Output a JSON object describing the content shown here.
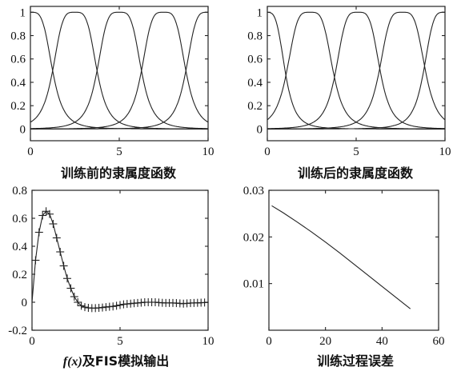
{
  "chart_data": [
    {
      "type": "line",
      "title": "",
      "caption": "训练前的隶属度函数",
      "xlim": [
        0,
        10
      ],
      "ylim": [
        -0.1,
        1.05
      ],
      "x_ticks": [
        0,
        5,
        10
      ],
      "y_ticks": [
        0,
        0.2,
        0.4,
        0.6,
        0.8,
        1
      ],
      "x_tick_labels": [
        "0",
        "5",
        "10"
      ],
      "y_tick_labels": [
        "0",
        "0.2",
        "0.4",
        "0.6",
        "0.8",
        "1"
      ],
      "series": [
        {
          "kind": "gbell",
          "a": 1.25,
          "b": 2,
          "c": 0
        },
        {
          "kind": "gbell",
          "a": 1.25,
          "b": 2,
          "c": 2.5
        },
        {
          "kind": "gbell",
          "a": 1.25,
          "b": 2,
          "c": 5
        },
        {
          "kind": "gbell",
          "a": 1.25,
          "b": 2,
          "c": 7.5
        },
        {
          "kind": "gbell",
          "a": 1.25,
          "b": 2,
          "c": 10
        }
      ],
      "grid": false
    },
    {
      "type": "line",
      "title": "",
      "caption": "训练后的隶属度函数",
      "xlim": [
        0,
        10
      ],
      "ylim": [
        -0.1,
        1.05
      ],
      "x_ticks": [
        0,
        5,
        10
      ],
      "y_ticks": [
        0,
        0.2,
        0.4,
        0.6,
        0.8,
        1
      ],
      "x_tick_labels": [
        "0",
        "5",
        "10"
      ],
      "y_tick_labels": [
        "0",
        "0.2",
        "0.4",
        "0.6",
        "0.8",
        "1"
      ],
      "series": [
        {
          "kind": "gbell",
          "a": 1.1,
          "b": 2,
          "c": -0.1
        },
        {
          "kind": "gbell",
          "a": 1.3,
          "b": 2,
          "c": 2.4
        },
        {
          "kind": "gbell",
          "a": 1.25,
          "b": 2,
          "c": 5.1
        },
        {
          "kind": "gbell",
          "a": 1.3,
          "b": 2,
          "c": 7.6
        },
        {
          "kind": "gbell",
          "a": 1.2,
          "b": 2,
          "c": 10
        }
      ],
      "grid": false
    },
    {
      "type": "line",
      "title": "",
      "caption": "f(x)及FIS模拟输出",
      "caption_italic_part": "f(x)",
      "caption_rest": "及FIS模拟输出",
      "xlim": [
        0,
        10
      ],
      "ylim": [
        -0.2,
        0.8
      ],
      "x_ticks": [
        0,
        5,
        10
      ],
      "y_ticks": [
        -0.2,
        0,
        0.2,
        0.4,
        0.6,
        0.8
      ],
      "x_tick_labels": [
        "0",
        "5",
        "10"
      ],
      "y_tick_labels": [
        "-0.2",
        "0",
        "0.2",
        "0.4",
        "0.6",
        "0.8"
      ],
      "series": [
        {
          "kind": "line",
          "x": [
            0,
            0.2,
            0.4,
            0.6,
            0.8,
            1.0,
            1.2,
            1.4,
            1.6,
            1.8,
            2.0,
            2.2,
            2.4,
            2.6,
            2.8,
            3.0,
            3.2,
            3.4,
            3.6,
            3.8,
            4.0,
            4.5,
            5.0,
            5.5,
            6.0,
            6.5,
            7.0,
            7.5,
            8.0,
            8.5,
            9.0,
            9.5,
            10.0
          ],
          "y": [
            0,
            0.3,
            0.5,
            0.62,
            0.65,
            0.63,
            0.56,
            0.46,
            0.36,
            0.26,
            0.17,
            0.1,
            0.04,
            0.0,
            -0.025,
            -0.035,
            -0.04,
            -0.042,
            -0.042,
            -0.04,
            -0.035,
            -0.03,
            -0.02,
            -0.01,
            -0.005,
            0.0,
            0.0,
            -0.005,
            -0.005,
            -0.01,
            -0.005,
            -0.005,
            0.0
          ]
        },
        {
          "kind": "markers",
          "marker": "+",
          "x": [
            0.2,
            0.4,
            0.6,
            0.8,
            1.0,
            1.2,
            1.4,
            1.6,
            1.8,
            2.0,
            2.2,
            2.4,
            2.6,
            2.8,
            3.0,
            3.2,
            3.4,
            3.6,
            3.8,
            4.0,
            4.2,
            4.4,
            4.6,
            4.8,
            5.0,
            5.2,
            5.4,
            5.6,
            5.8,
            6.0,
            6.2,
            6.4,
            6.6,
            6.8,
            7.0,
            7.2,
            7.4,
            7.6,
            7.8,
            8.0,
            8.2,
            8.4,
            8.6,
            8.8,
            9.0,
            9.2,
            9.4,
            9.6,
            9.8
          ],
          "y": [
            0.3,
            0.5,
            0.62,
            0.65,
            0.63,
            0.56,
            0.46,
            0.36,
            0.26,
            0.17,
            0.1,
            0.04,
            0.0,
            -0.025,
            -0.035,
            -0.04,
            -0.042,
            -0.042,
            -0.04,
            -0.038,
            -0.035,
            -0.032,
            -0.03,
            -0.025,
            -0.02,
            -0.015,
            -0.012,
            -0.01,
            -0.007,
            -0.005,
            -0.003,
            0.0,
            0.0,
            0.0,
            0.0,
            -0.002,
            -0.004,
            -0.005,
            -0.005,
            -0.005,
            -0.006,
            -0.008,
            -0.01,
            -0.008,
            -0.006,
            -0.005,
            -0.004,
            -0.003,
            -0.002
          ]
        }
      ],
      "grid": false
    },
    {
      "type": "line",
      "title": "",
      "caption": "训练过程误差",
      "xlim": [
        0,
        60
      ],
      "ylim": [
        0,
        0.03
      ],
      "x_ticks": [
        0,
        20,
        40,
        60
      ],
      "y_ticks": [
        0.01,
        0.02,
        0.03
      ],
      "x_tick_labels": [
        "0",
        "20",
        "40",
        "60"
      ],
      "y_tick_labels": [
        "0.01",
        "0.02",
        "0.03"
      ],
      "series": [
        {
          "kind": "line",
          "x": [
            1,
            5,
            10,
            15,
            20,
            25,
            30,
            35,
            40,
            45,
            50
          ],
          "y": [
            0.0267,
            0.0252,
            0.0232,
            0.0211,
            0.0189,
            0.0166,
            0.0142,
            0.0118,
            0.0094,
            0.007,
            0.0046
          ]
        }
      ],
      "grid": false
    }
  ]
}
